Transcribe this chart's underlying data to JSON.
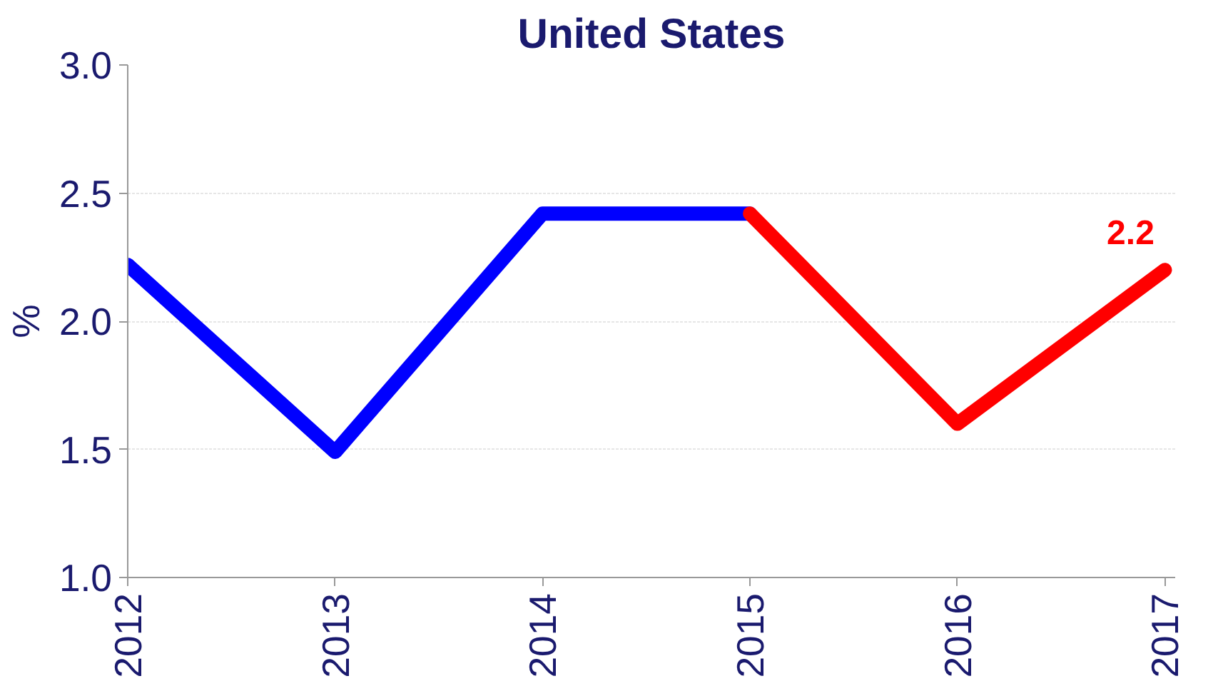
{
  "chart_data": {
    "type": "line",
    "title": "United States",
    "ylabel": "%",
    "categories": [
      "2012",
      "2013",
      "2014",
      "2015",
      "2016",
      "2017"
    ],
    "series": [
      {
        "color": "#0000ff",
        "values": [
          2.22,
          1.49,
          2.42,
          2.42,
          null,
          null
        ]
      },
      {
        "color": "#ff0000",
        "values": [
          null,
          null,
          null,
          2.42,
          1.6,
          2.2
        ],
        "value_labels": [
          null,
          null,
          null,
          null,
          null,
          "2.2"
        ]
      }
    ],
    "ylim": [
      1.0,
      3.0
    ],
    "yticks": [
      {
        "value": 1.0,
        "label": "1.0"
      },
      {
        "value": 1.5,
        "label": "1.5"
      },
      {
        "value": 2.0,
        "label": "2.0"
      },
      {
        "value": 2.5,
        "label": "2.5"
      },
      {
        "value": 3.0,
        "label": "3.0"
      }
    ],
    "grid": "y",
    "marker": "none",
    "line_style": "solid"
  }
}
